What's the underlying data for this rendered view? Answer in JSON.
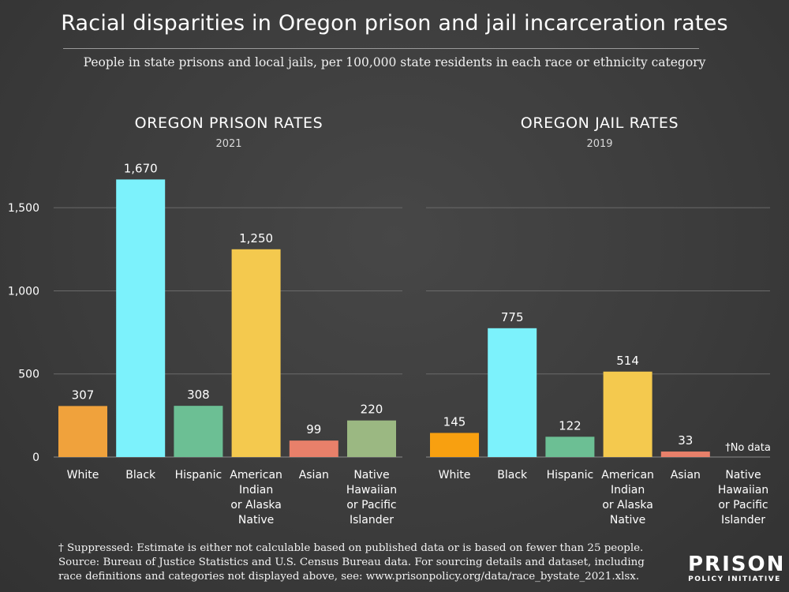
{
  "title": "Racial disparities in Oregon prison and jail incarceration rates",
  "subtitle": "People in state prisons and local jails, per 100,000 state residents in each race or ethnicity category",
  "chart_data": [
    {
      "type": "bar",
      "title": "OREGON PRISON RATES",
      "subtitle": "2021",
      "categories": [
        "White",
        "Black",
        "Hispanic",
        "American Indian or Alaska Native",
        "Asian",
        "Native Hawaiian or Pacific Islander"
      ],
      "category_lines": [
        [
          "White"
        ],
        [
          "Black"
        ],
        [
          "Hispanic"
        ],
        [
          "American",
          "Indian",
          "or Alaska",
          "Native"
        ],
        [
          "Asian"
        ],
        [
          "Native",
          "Hawaiian",
          "or Pacific",
          "Islander"
        ]
      ],
      "values": [
        307,
        1670,
        308,
        1250,
        99,
        220
      ],
      "value_labels": [
        "307",
        "1,670",
        "308",
        "1,250",
        "99",
        "220"
      ],
      "colors": [
        "#f0a23c",
        "#7cf2fc",
        "#6cbf94",
        "#f4c94e",
        "#e8806a",
        "#9bb882"
      ],
      "ylim": [
        0,
        1800
      ],
      "yticks": [
        0,
        500,
        1000,
        1500
      ],
      "ytick_labels": [
        "0",
        "500",
        "1,000",
        "1,500"
      ],
      "grid": true
    },
    {
      "type": "bar",
      "title": "OREGON JAIL RATES",
      "subtitle": "2019",
      "categories": [
        "White",
        "Black",
        "Hispanic",
        "American Indian or Alaska Native",
        "Asian",
        "Native Hawaiian or Pacific Islander"
      ],
      "category_lines": [
        [
          "White"
        ],
        [
          "Black"
        ],
        [
          "Hispanic"
        ],
        [
          "American",
          "Indian",
          "or Alaska",
          "Native"
        ],
        [
          "Asian"
        ],
        [
          "Native",
          "Hawaiian",
          "or Pacific",
          "Islander"
        ]
      ],
      "values": [
        145,
        775,
        122,
        514,
        33,
        null
      ],
      "value_labels": [
        "145",
        "775",
        "122",
        "514",
        "33",
        "†No data"
      ],
      "colors": [
        "#f8a010",
        "#7cf2fc",
        "#6cbf94",
        "#f4c94e",
        "#e8806a",
        "#9bb882"
      ],
      "ylim": [
        0,
        1800
      ],
      "yticks": [
        0,
        500,
        1000,
        1500
      ],
      "grid": true
    }
  ],
  "footnote": {
    "line1": "† Suppressed: Estimate is either not calculable based on published data or is based on fewer than 25 people.",
    "line2": "Source: Bureau of Justice Statistics and U.S. Census Bureau data. For sourcing details and dataset, including",
    "line3": "race definitions and categories not displayed above, see: www.prisonpolicy.org/data/race_bystate_2021.xlsx."
  },
  "logo": {
    "main": "PRISON",
    "sub": "POLICY INITIATIVE"
  }
}
